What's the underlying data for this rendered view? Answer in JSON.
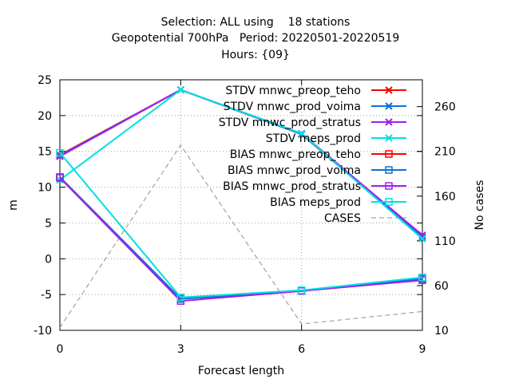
{
  "header": {
    "line1": "Selection: ALL using    18 stations",
    "line2": "Geopotential 700hPa   Period: 20220501-20220519",
    "line3": "Hours: {09}"
  },
  "chart_data": {
    "type": "line",
    "xlabel": "Forecast length",
    "ylabel": "m",
    "y2label": "No cases",
    "x": [
      0,
      3,
      6,
      9
    ],
    "xticks": [
      "0",
      "3",
      "6",
      "9"
    ],
    "ylim": [
      -10,
      25
    ],
    "yticks": [
      -10,
      -5,
      0,
      5,
      10,
      15,
      20,
      25
    ],
    "y2lim": [
      10,
      290
    ],
    "y2ticks": [
      10,
      60,
      110,
      160,
      210,
      260
    ],
    "grid": true,
    "legend_position": "top-right",
    "series": [
      {
        "name": "STDV mnwc_preop_teho",
        "axis": "y",
        "color": "#ff0000",
        "marker": "x",
        "values": [
          14.5,
          23.6,
          17.4,
          3.0
        ]
      },
      {
        "name": "STDV mnwc_prod_voima",
        "axis": "y",
        "color": "#0b72d8",
        "marker": "x",
        "values": [
          14.4,
          23.6,
          17.4,
          3.0
        ]
      },
      {
        "name": "STDV mnwc_prod_stratus",
        "axis": "y",
        "color": "#a020f0",
        "marker": "x",
        "values": [
          14.3,
          23.6,
          17.5,
          3.3
        ]
      },
      {
        "name": "STDV meps_prod",
        "axis": "y",
        "color": "#00e0e0",
        "marker": "x",
        "values": [
          11.0,
          23.6,
          17.5,
          2.8
        ]
      },
      {
        "name": "BIAS mnwc_preop_teho",
        "axis": "y",
        "color": "#ff0000",
        "marker": "square",
        "values": [
          11.4,
          -5.6,
          -4.5,
          -2.8
        ]
      },
      {
        "name": "BIAS mnwc_prod_voima",
        "axis": "y",
        "color": "#0b72d8",
        "marker": "square",
        "values": [
          11.4,
          -5.6,
          -4.5,
          -2.8
        ]
      },
      {
        "name": "BIAS mnwc_prod_stratus",
        "axis": "y",
        "color": "#a020f0",
        "marker": "square",
        "values": [
          11.3,
          -5.9,
          -4.5,
          -3.0
        ]
      },
      {
        "name": "BIAS meps_prod",
        "axis": "y",
        "color": "#00e0e0",
        "marker": "square",
        "values": [
          14.8,
          -5.4,
          -4.4,
          -2.6
        ]
      },
      {
        "name": "CASES",
        "axis": "y2",
        "color": "#909090",
        "marker": "none",
        "dashed": true,
        "values": [
          13,
          217,
          17,
          31
        ]
      }
    ]
  }
}
